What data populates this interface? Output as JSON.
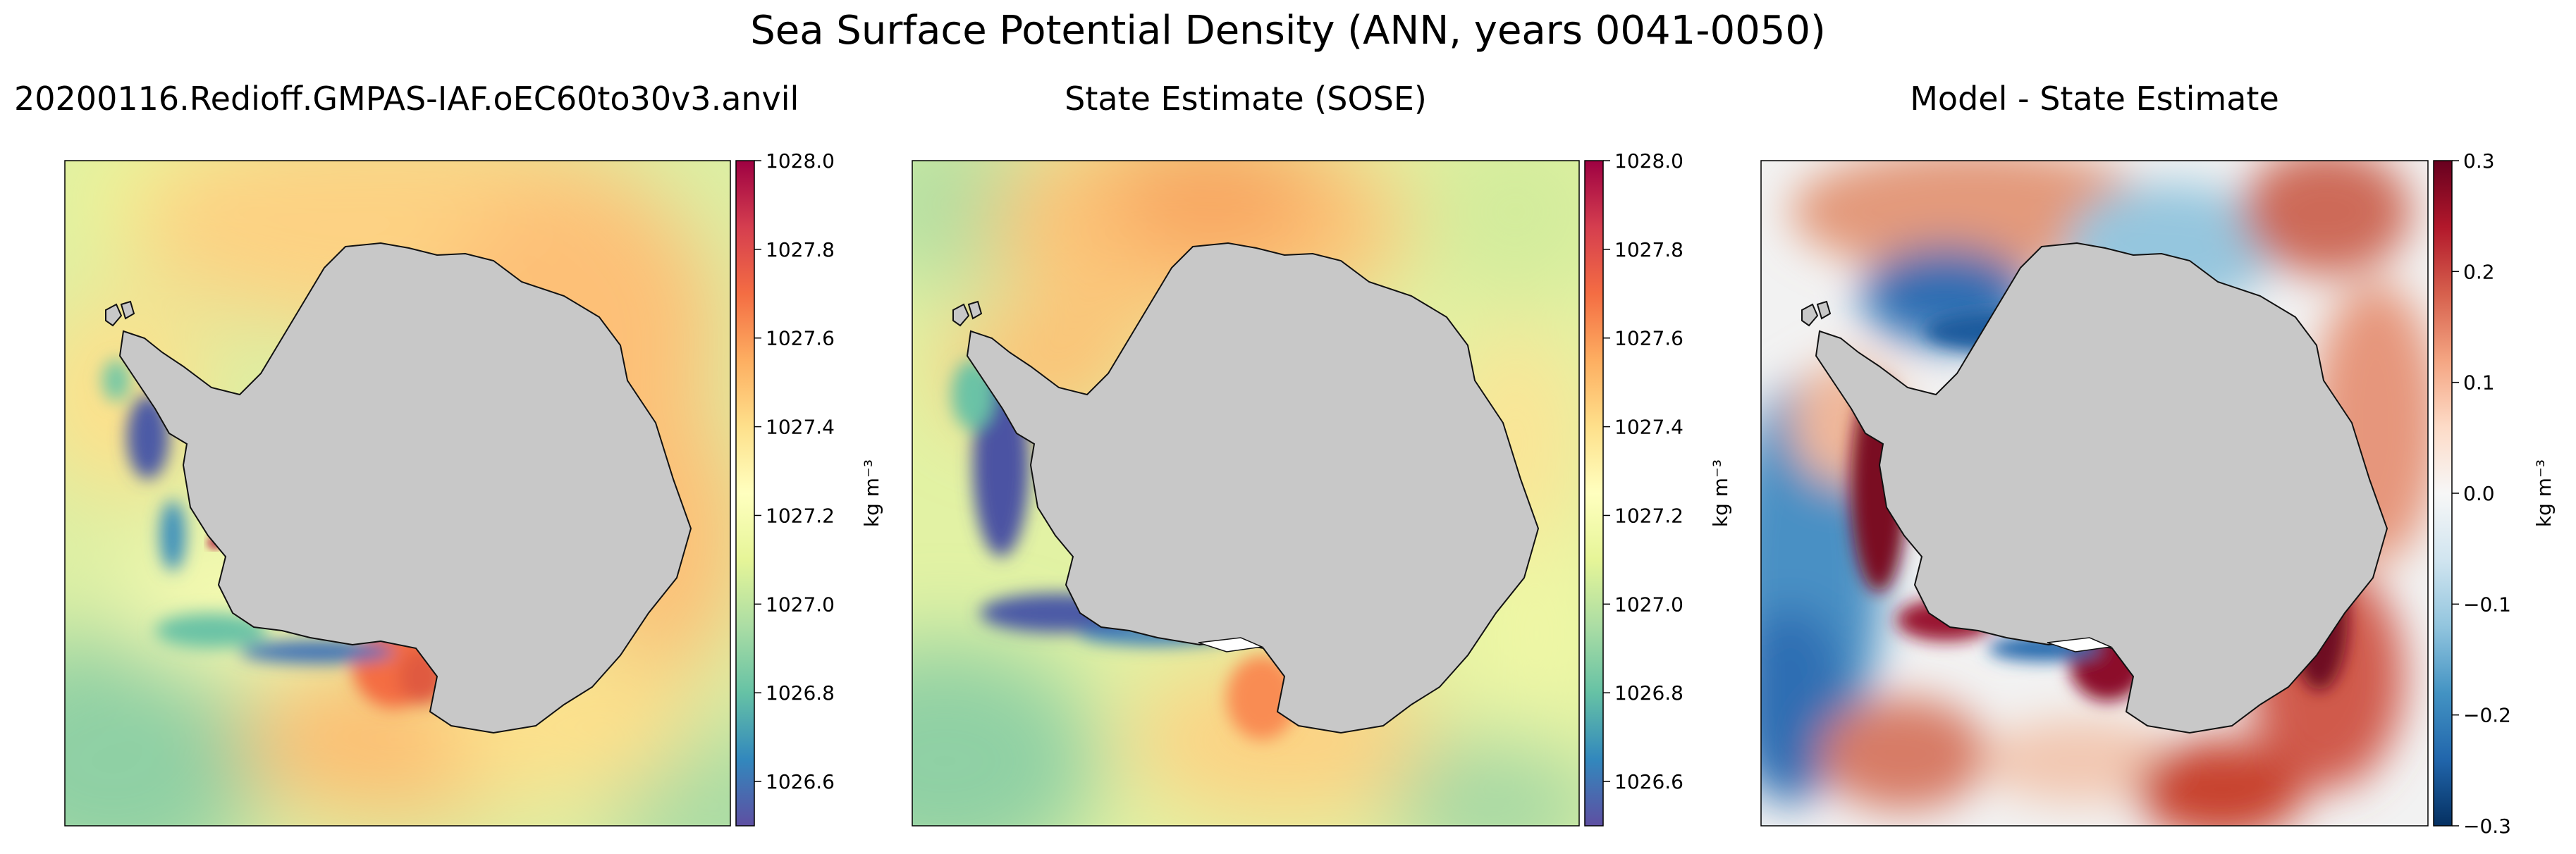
{
  "figure": {
    "title": "Sea Surface Potential Density (ANN, years 0041-0050)"
  },
  "panels": [
    {
      "id": "model",
      "title": "20200116.Redioff.GMPAS-IAF.oEC60to30v3.anvil",
      "field": "density_model"
    },
    {
      "id": "sose",
      "title": "State Estimate (SOSE)",
      "field": "density_sose"
    },
    {
      "id": "diff",
      "title": "Model - State Estimate",
      "field": "difference"
    }
  ],
  "chart_data": [
    {
      "type": "heatmap",
      "title": "20200116.Redioff.GMPAS-IAF.oEC60to30v3.anvil",
      "projection": "south-polar-stereographic",
      "colormap": "Spectral_r",
      "colorbar": {
        "ticks": [
          "1028.0",
          "1027.8",
          "1027.6",
          "1027.4",
          "1027.2",
          "1027.0",
          "1026.8",
          "1026.6"
        ],
        "tick_values": [
          1028.0,
          1027.8,
          1027.6,
          1027.4,
          1027.2,
          1027.0,
          1026.8,
          1026.6
        ],
        "range": [
          1026.5,
          1028.0
        ],
        "label": "kg m⁻³"
      },
      "land_color": "#c8c8c8"
    },
    {
      "type": "heatmap",
      "title": "State Estimate (SOSE)",
      "projection": "south-polar-stereographic",
      "colormap": "Spectral_r",
      "colorbar": {
        "ticks": [
          "1028.0",
          "1027.8",
          "1027.6",
          "1027.4",
          "1027.2",
          "1027.0",
          "1026.8",
          "1026.6"
        ],
        "tick_values": [
          1028.0,
          1027.8,
          1027.6,
          1027.4,
          1027.2,
          1027.0,
          1026.8,
          1026.6
        ],
        "range": [
          1026.5,
          1028.0
        ],
        "label": "kg m⁻³"
      },
      "land_color": "#c8c8c8"
    },
    {
      "type": "heatmap",
      "title": "Model - State Estimate",
      "projection": "south-polar-stereographic",
      "colormap": "RdBu_r",
      "colorbar": {
        "ticks": [
          "0.3",
          "0.2",
          "0.1",
          "0.0",
          "−0.1",
          "−0.2",
          "−0.3"
        ],
        "tick_values": [
          0.3,
          0.2,
          0.1,
          0.0,
          -0.1,
          -0.2,
          -0.3
        ],
        "range": [
          -0.3,
          0.3
        ],
        "label": "kg m⁻³"
      },
      "land_color": "#c8c8c8"
    }
  ],
  "colors": {
    "land": "#c8c8c8",
    "coast": "#111111",
    "spectral_r": [
      "#5e4fa2",
      "#3288bd",
      "#66c2a5",
      "#abdda4",
      "#e6f598",
      "#ffffbf",
      "#fee08b",
      "#fdae61",
      "#f46d43",
      "#d53e4f",
      "#9e0142"
    ],
    "rdbu_r": [
      "#053061",
      "#2166ac",
      "#4393c3",
      "#92c5de",
      "#d1e5f0",
      "#f7f7f7",
      "#fddbc7",
      "#f4a582",
      "#d6604d",
      "#b2182b",
      "#67001f"
    ]
  }
}
